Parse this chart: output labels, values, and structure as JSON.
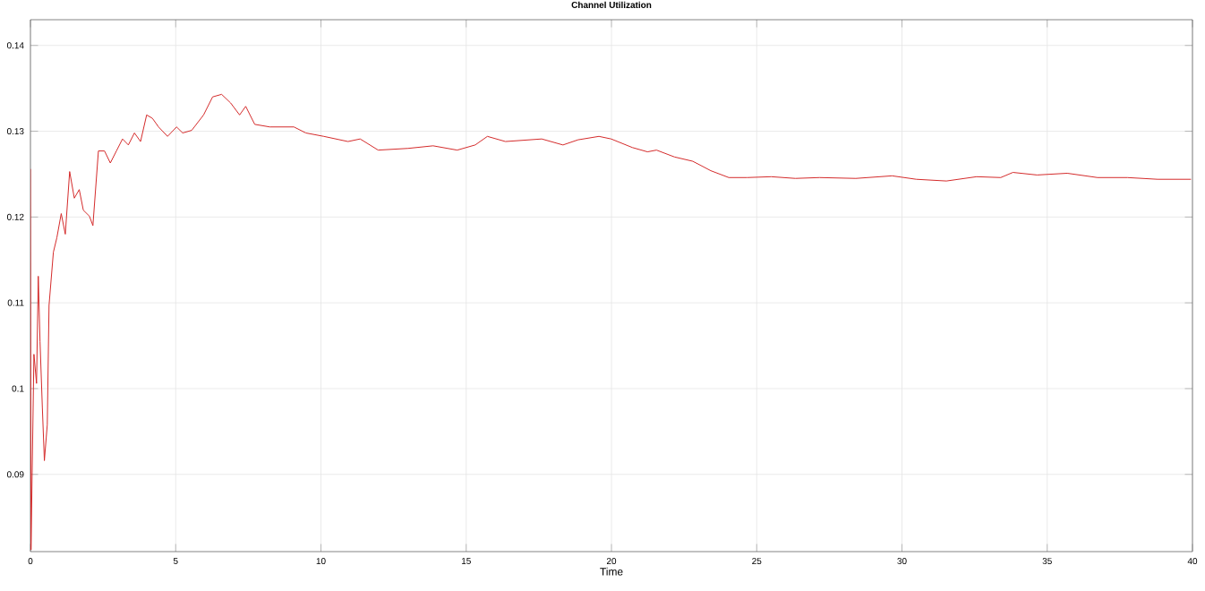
{
  "chart_data": {
    "type": "line",
    "title": "Channel Utilization",
    "xlabel": "Time",
    "xlim": [
      0,
      40
    ],
    "ylim": [
      0.081,
      0.143
    ],
    "xticks": [
      0,
      5,
      10,
      15,
      20,
      25,
      30,
      35,
      40
    ],
    "yticks": [
      0.09,
      0.1,
      0.11,
      0.12,
      0.13,
      0.14
    ],
    "grid": true,
    "marker": "none",
    "line_style": "solid",
    "series": [
      {
        "color": "#d42a2a",
        "x": [
          0,
          0.02,
          0.12,
          0.21,
          0.27,
          0.33,
          0.41,
          0.48,
          0.58,
          0.64,
          0.79,
          0.91,
          1.06,
          1.2,
          1.35,
          1.51,
          1.68,
          1.82,
          2.03,
          2.15,
          2.34,
          2.55,
          2.75,
          2.96,
          3.17,
          3.37,
          3.58,
          3.79,
          4.0,
          4.2,
          4.41,
          4.72,
          5.03,
          5.24,
          5.55,
          5.96,
          6.27,
          6.58,
          6.89,
          7.2,
          7.41,
          7.72,
          8.24,
          9.07,
          9.48,
          10.1,
          10.93,
          11.35,
          11.97,
          13.0,
          13.86,
          14.69,
          15.31,
          15.73,
          16.35,
          17.6,
          18.33,
          18.85,
          19.57,
          19.99,
          20.72,
          21.24,
          21.55,
          22.17,
          22.8,
          23.42,
          24.04,
          24.67,
          25.5,
          26.33,
          27.16,
          28.41,
          29.66,
          30.49,
          31.53,
          32.57,
          33.4,
          33.82,
          34.65,
          35.69,
          36.73,
          37.76,
          38.8,
          39.95
        ],
        "values": [
          0.1256,
          0.0812,
          0.104,
          0.1006,
          0.1131,
          0.1055,
          0.0978,
          0.0916,
          0.0958,
          0.1097,
          0.1159,
          0.1176,
          0.1204,
          0.118,
          0.1253,
          0.1222,
          0.1232,
          0.1208,
          0.1201,
          0.119,
          0.1277,
          0.1277,
          0.1263,
          0.1277,
          0.1291,
          0.1284,
          0.1298,
          0.1288,
          0.1319,
          0.1315,
          0.1305,
          0.1294,
          0.1305,
          0.1298,
          0.1301,
          0.1319,
          0.134,
          0.1343,
          0.1333,
          0.1319,
          0.1329,
          0.1308,
          0.1305,
          0.1305,
          0.1298,
          0.1294,
          0.1288,
          0.1291,
          0.1278,
          0.128,
          0.1283,
          0.1278,
          0.1284,
          0.1294,
          0.1288,
          0.1291,
          0.1284,
          0.129,
          0.1294,
          0.1291,
          0.1281,
          0.1276,
          0.1278,
          0.127,
          0.1265,
          0.1254,
          0.1246,
          0.1246,
          0.1247,
          0.1245,
          0.1246,
          0.1245,
          0.1248,
          0.1244,
          0.1242,
          0.1247,
          0.1246,
          0.1252,
          0.1249,
          0.1251,
          0.1246,
          0.1246,
          0.1244,
          0.1244
        ]
      }
    ]
  }
}
